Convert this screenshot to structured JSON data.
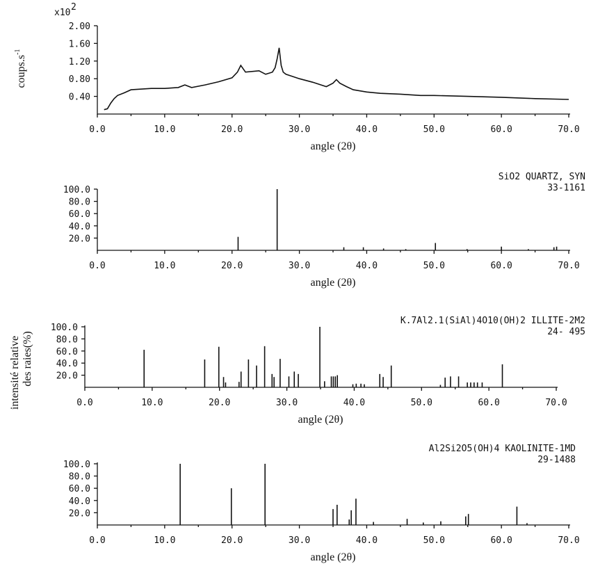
{
  "figure": {
    "shared_ylabel_line1": "intensité relative",
    "shared_ylabel_line2": "des raies(%)"
  },
  "chart_data": [
    {
      "type": "line",
      "ylabel": "coups.s",
      "ylabel_superscript": "-1",
      "y_multiplier_label": "x10",
      "y_multiplier_exp": "2",
      "xlabel": "angle (2θ)",
      "xlim": [
        0,
        70
      ],
      "ylim": [
        0,
        2.0
      ],
      "xticks": [
        "0.0",
        "10.0",
        "20.0",
        "30.0",
        "40.0",
        "50.0",
        "60.0",
        "70.0"
      ],
      "yticks": [
        "0.40",
        "0.80",
        "1.20",
        "1.60",
        "2.00"
      ],
      "series": [
        {
          "x": [
            1.0,
            1.5,
            2.0,
            2.5,
            3.0,
            4.0,
            5.0,
            6.0,
            8.0,
            10.0,
            12.0,
            13.0,
            14.0,
            16.0,
            18.0,
            20.0,
            20.8,
            21.3,
            22.0,
            24.0,
            25.0,
            26.0,
            26.4,
            26.7,
            27.0,
            27.3,
            27.6,
            28.0,
            29.0,
            30.0,
            32.0,
            34.0,
            35.0,
            35.5,
            36.0,
            37.0,
            38.0,
            40.0,
            42.0,
            45.0,
            48.0,
            50.0,
            55.0,
            60.0,
            65.0,
            70.0
          ],
          "y": [
            0.1,
            0.12,
            0.25,
            0.35,
            0.42,
            0.48,
            0.55,
            0.56,
            0.58,
            0.58,
            0.6,
            0.66,
            0.6,
            0.66,
            0.73,
            0.82,
            0.95,
            1.1,
            0.95,
            0.98,
            0.9,
            0.95,
            1.05,
            1.25,
            1.5,
            1.1,
            0.95,
            0.9,
            0.85,
            0.8,
            0.72,
            0.62,
            0.7,
            0.78,
            0.7,
            0.62,
            0.55,
            0.5,
            0.47,
            0.45,
            0.42,
            0.42,
            0.4,
            0.38,
            0.35,
            0.33
          ]
        }
      ]
    },
    {
      "type": "bar",
      "name": "SiO2   QUARTZ, SYN",
      "card": "33-1161",
      "xlabel": "angle (2θ)",
      "xlim": [
        0,
        70
      ],
      "ylim": [
        0,
        100
      ],
      "xticks": [
        "0.0",
        "10.0",
        "20.0",
        "30.0",
        "40.0",
        "50.0",
        "60.0",
        "70.0"
      ],
      "yticks": [
        "20.0",
        "40.0",
        "60.0",
        "80.0",
        "100.0"
      ],
      "x": [
        20.9,
        26.7,
        36.6,
        39.5,
        42.5,
        45.8,
        50.2,
        54.9,
        60.0,
        64.0,
        67.8,
        68.2
      ],
      "values": [
        22,
        100,
        5,
        5,
        3,
        2,
        12,
        2,
        6,
        2,
        5,
        6
      ]
    },
    {
      "type": "bar",
      "name": "K.7Al2.1(SiAl)4O10(OH)2   ILLITE-2M2",
      "card": "24- 495",
      "xlabel": "angle (2θ)",
      "xlim": [
        0,
        70
      ],
      "ylim": [
        0,
        100
      ],
      "xticks": [
        "0.0",
        "10.0",
        "20.0",
        "30.0",
        "40.0",
        "50.0",
        "60.0",
        "70.0"
      ],
      "yticks": [
        "20.0",
        "40.0",
        "60.0",
        "80.0",
        "100.0"
      ],
      "x": [
        8.8,
        17.8,
        19.9,
        20.6,
        20.9,
        22.9,
        23.2,
        24.3,
        25.5,
        26.7,
        27.8,
        28.1,
        29.0,
        30.3,
        31.1,
        31.7,
        34.9,
        35.6,
        36.6,
        36.9,
        37.2,
        37.5,
        39.8,
        40.3,
        41.0,
        41.5,
        43.8,
        44.3,
        45.5,
        52.8,
        53.5,
        54.3,
        55.5,
        56.8,
        57.3,
        57.8,
        58.3,
        59.0,
        62.0
      ],
      "values": [
        62,
        46,
        67,
        17,
        8,
        9,
        26,
        46,
        36,
        68,
        22,
        17,
        47,
        18,
        26,
        22,
        100,
        10,
        18,
        18,
        18,
        20,
        5,
        6,
        6,
        5,
        22,
        17,
        36,
        4,
        16,
        18,
        18,
        8,
        8,
        8,
        8,
        8,
        38
      ]
    },
    {
      "type": "bar",
      "name": "Al2Si2O5(OH)4   KAOLINITE-1MD",
      "card": "29-1488",
      "xlabel": "angle (2θ)",
      "xlim": [
        0,
        70
      ],
      "ylim": [
        0,
        100
      ],
      "xticks": [
        "0.0",
        "10.0",
        "20.0",
        "30.0",
        "40.0",
        "50.0",
        "60.0",
        "70.0"
      ],
      "yticks": [
        "20.0",
        "40.0",
        "60.0",
        "80.0",
        "100.0"
      ],
      "x": [
        12.3,
        19.9,
        24.9,
        35.0,
        35.6,
        37.4,
        37.7,
        38.4,
        41.0,
        46.0,
        48.4,
        51.0,
        54.7,
        55.1,
        62.3,
        63.8
      ],
      "values": [
        100,
        60,
        100,
        26,
        33,
        9,
        24,
        43,
        5,
        10,
        4,
        6,
        14,
        18,
        30,
        3
      ]
    }
  ]
}
